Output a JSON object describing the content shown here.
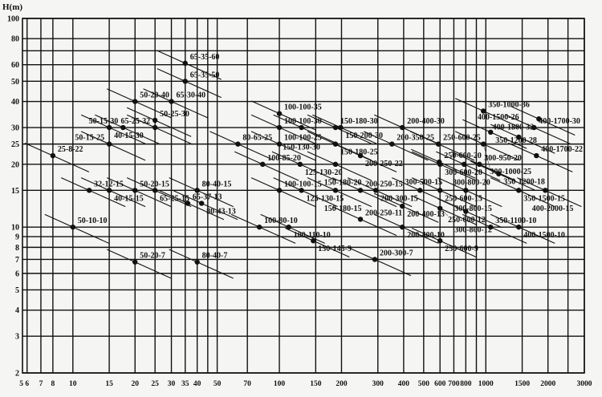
{
  "chart_data": {
    "type": "scatter",
    "title": "",
    "xlabel": "",
    "ylabel": "H(m)",
    "xscale": "log",
    "yscale": "log",
    "xlim": [
      5.7,
      3000
    ],
    "ylim": [
      2,
      100
    ],
    "grid": true,
    "x_ticks": [
      5,
      6,
      7,
      8,
      10,
      15,
      20,
      25,
      30,
      35,
      40,
      50,
      70,
      100,
      150,
      200,
      300,
      400,
      500,
      600,
      700,
      800,
      1000,
      1500,
      2000,
      3000
    ],
    "y_ticks": [
      2,
      3,
      4,
      5,
      6,
      7,
      8,
      9,
      10,
      15,
      20,
      25,
      30,
      40,
      50,
      60,
      80,
      100
    ],
    "x_gridlines": [
      6,
      7,
      8,
      10,
      15,
      20,
      25,
      30,
      35,
      40,
      45,
      50,
      70,
      100,
      150,
      200,
      300,
      400,
      500,
      600,
      700,
      800,
      900,
      1000,
      1500,
      2000,
      2500,
      3000
    ],
    "y_gridlines": [
      2,
      3,
      4,
      5,
      6,
      7,
      8,
      9,
      10,
      15,
      20,
      25,
      30,
      40,
      50,
      60,
      70,
      80,
      100
    ],
    "points": [
      {
        "label": "65-35-60",
        "q": 35,
        "h": 61
      },
      {
        "label": "65-35-50",
        "q": 35,
        "h": 50
      },
      {
        "label": "65-30-40",
        "q": 30,
        "h": 40
      },
      {
        "label": "50-20-40",
        "q": 20,
        "h": 40
      },
      {
        "label": "50-25-30",
        "q": 25,
        "h": 32.5
      },
      {
        "label": "65-25-32",
        "q": 25,
        "h": 30
      },
      {
        "label": "50-15-30",
        "q": 17.5,
        "h": 30
      },
      {
        "label": "40-15-30",
        "q": 15,
        "h": 30
      },
      {
        "label": "50-15-25",
        "q": 15,
        "h": 25
      },
      {
        "label": "25-8-22",
        "q": 8,
        "h": 22
      },
      {
        "label": "80-65-25",
        "q": 63,
        "h": 25
      },
      {
        "label": "32-12-15",
        "q": 12,
        "h": 15
      },
      {
        "label": "40-15-15",
        "q": 15,
        "h": 15
      },
      {
        "label": "50-20-15",
        "q": 20,
        "h": 15
      },
      {
        "label": "65-25-15",
        "q": 25,
        "h": 15
      },
      {
        "label": "65-37-13",
        "q": 36,
        "h": 13
      },
      {
        "label": "80-40-15",
        "q": 40,
        "h": 15
      },
      {
        "label": "80-43-13",
        "q": 42,
        "h": 13
      },
      {
        "label": "50-10-10",
        "q": 10,
        "h": 10
      },
      {
        "label": "50-20-7",
        "q": 20,
        "h": 6.8
      },
      {
        "label": "80-40-7",
        "q": 40,
        "h": 6.8
      },
      {
        "label": "100-100-35",
        "q": 100,
        "h": 35
      },
      {
        "label": "100-100-30",
        "q": 100,
        "h": 30
      },
      {
        "label": "100-100-25",
        "q": 100,
        "h": 25
      },
      {
        "label": "150-130-30",
        "q": 128,
        "h": 30
      },
      {
        "label": "150-180-30",
        "q": 187,
        "h": 30
      },
      {
        "label": "150-200-30",
        "q": 198,
        "h": 30
      },
      {
        "label": "150-180-25",
        "q": 187,
        "h": 25
      },
      {
        "label": "200-250-22",
        "q": 247,
        "h": 22
      },
      {
        "label": "200-400-30",
        "q": 394,
        "h": 30
      },
      {
        "label": "200-350-25",
        "q": 351,
        "h": 25
      },
      {
        "label": "100-85-20",
        "q": 83,
        "h": 20
      },
      {
        "label": "125-130-20",
        "q": 126,
        "h": 20
      },
      {
        "label": "150-180-20",
        "q": 187,
        "h": 20
      },
      {
        "label": "100-100-15",
        "q": 100,
        "h": 15
      },
      {
        "label": "125-130-15",
        "q": 128,
        "h": 15
      },
      {
        "label": "150-180-15",
        "q": 187,
        "h": 15
      },
      {
        "label": "200-250-15",
        "q": 247,
        "h": 15
      },
      {
        "label": "200-300-15",
        "q": 293,
        "h": 15
      },
      {
        "label": "200-400-13",
        "q": 394,
        "h": 12.6
      },
      {
        "label": "100-80-10",
        "q": 80,
        "h": 10
      },
      {
        "label": "100-110-10",
        "q": 111,
        "h": 10
      },
      {
        "label": "150-145-9",
        "q": 146,
        "h": 8.6
      },
      {
        "label": "200-250-11",
        "q": 247,
        "h": 10.9
      },
      {
        "label": "200-400-10",
        "q": 394,
        "h": 10
      },
      {
        "label": "200-300-7",
        "q": 290,
        "h": 7
      },
      {
        "label": "250-600-25",
        "q": 589,
        "h": 25
      },
      {
        "label": "250-600-20",
        "q": 595,
        "h": 20.5
      },
      {
        "label": "300-600-20",
        "q": 600,
        "h": 20
      },
      {
        "label": "300-800-20",
        "q": 785,
        "h": 20
      },
      {
        "label": "300-950-20",
        "q": 931,
        "h": 20
      },
      {
        "label": "350-1000-36",
        "q": 973,
        "h": 36
      },
      {
        "label": "400-1800-32",
        "q": 1806,
        "h": 33
      },
      {
        "label": "400-1700-30",
        "q": 1711,
        "h": 30
      },
      {
        "label": "350-1200-28",
        "q": 1055,
        "h": 28.5
      },
      {
        "label": "400-1500-26",
        "q": 1443,
        "h": 27
      },
      {
        "label": "300-1000-25",
        "q": 973,
        "h": 25
      },
      {
        "label": "400-1700-22",
        "q": 1758,
        "h": 22
      },
      {
        "label": "350-1200-18",
        "q": 1154,
        "h": 18
      },
      {
        "label": "250-600-15",
        "q": 600,
        "h": 15
      },
      {
        "label": "300-500-15",
        "q": 480,
        "h": 15
      },
      {
        "label": "300-800-15",
        "q": 800,
        "h": 15
      },
      {
        "label": "350-1500-15",
        "q": 1443,
        "h": 15
      },
      {
        "label": "400-2000-15",
        "q": 1941,
        "h": 15
      },
      {
        "label": "250-600-12",
        "q": 600,
        "h": 12.3
      },
      {
        "label": "300-800-12",
        "q": 800,
        "h": 11.9
      },
      {
        "label": "350-1100-10",
        "q": 1055,
        "h": 10
      },
      {
        "label": "400-1500-10",
        "q": 1443,
        "h": 10
      },
      {
        "label": "250-600-9",
        "q": 600,
        "h": 8.6
      }
    ]
  }
}
